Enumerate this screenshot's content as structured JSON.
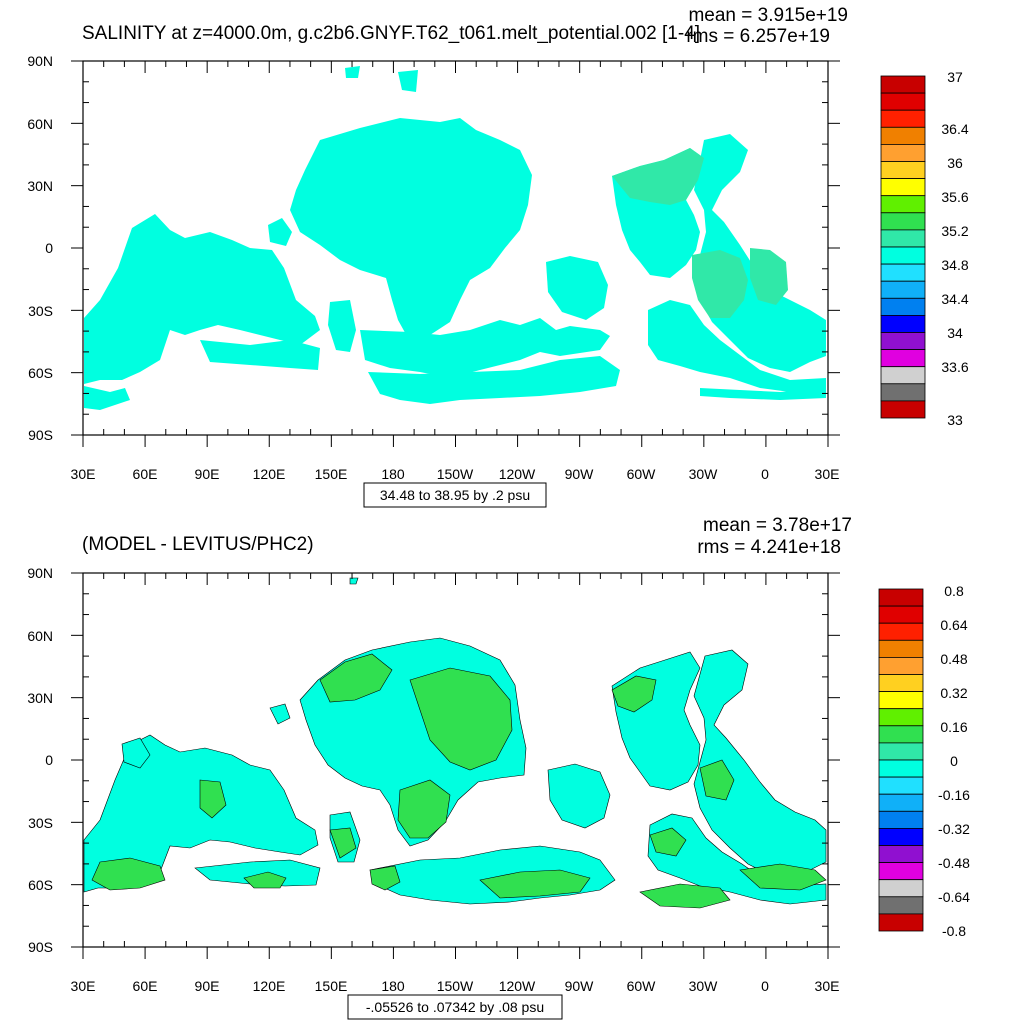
{
  "panels": [
    {
      "title": "SALINITY at z=4000.0m, g.c2b6.GNYF.T62_t061.melt_potential.002 [1-4]",
      "mean": "mean = 3.915e+19",
      "rms": "rms = 6.257e+19",
      "info": "34.48 to 38.95 by .2 psu",
      "colorbar_labels": [
        "37",
        "36.4",
        "36",
        "35.6",
        "35.2",
        "34.8",
        "34.4",
        "34",
        "33.6",
        "33"
      ],
      "colorbar_colors": [
        "#c80000",
        "#e00000",
        "#ff2000",
        "#f08000",
        "#ffa030",
        "#ffd020",
        "#ffff00",
        "#60f000",
        "#30e050",
        "#30e8a8",
        "#00ffe0",
        "#20e0ff",
        "#10b0f8",
        "#0080f0",
        "#0000ff",
        "#9010d0",
        "#e000e0",
        "#d0d0d0",
        "#707070"
      ]
    },
    {
      "title": "(MODEL - LEVITUS/PHC2)",
      "mean": "mean = 3.78e+17",
      "rms": "rms = 4.241e+18",
      "info": "-.05526 to .07342 by .08 psu",
      "colorbar_labels": [
        "0.8",
        "0.64",
        "0.48",
        "0.32",
        "0.16",
        "0",
        "-0.16",
        "-0.32",
        "-0.48",
        "-0.64",
        "-0.8"
      ],
      "colorbar_colors": [
        "#c80000",
        "#e00000",
        "#ff2000",
        "#f08000",
        "#ffa030",
        "#ffd020",
        "#ffff00",
        "#60f000",
        "#30e050",
        "#30e8a8",
        "#00ffe0",
        "#20e0ff",
        "#10b0f8",
        "#0080f0",
        "#0000ff",
        "#9010d0",
        "#e000e0",
        "#d0d0d0",
        "#707070"
      ]
    }
  ],
  "chart_data": [
    {
      "type": "heatmap",
      "title": "SALINITY at z=4000.0m, g.c2b6.GNYF.T62_t061.melt_potential.002 [1-4]",
      "x_ticks": [
        "30E",
        "60E",
        "90E",
        "120E",
        "150E",
        "180",
        "150W",
        "120W",
        "90W",
        "60W",
        "30W",
        "0",
        "30E"
      ],
      "y_ticks": [
        "90N",
        "60N",
        "30N",
        "0",
        "30S",
        "60S",
        "90S"
      ],
      "colorbar_labels": [
        "37",
        "36.4",
        "36",
        "35.6",
        "35.2",
        "34.8",
        "34.4",
        "34",
        "33.6",
        "33"
      ],
      "dominant_value_range": [
        34.8,
        35.0
      ]
    },
    {
      "type": "heatmap",
      "title": "(MODEL - LEVITUS/PHC2)",
      "x_ticks": [
        "30E",
        "60E",
        "90E",
        "120E",
        "150E",
        "180",
        "150W",
        "120W",
        "90W",
        "60W",
        "30W",
        "0",
        "30E"
      ],
      "y_ticks": [
        "90N",
        "60N",
        "30N",
        "0",
        "30S",
        "60S",
        "90S"
      ],
      "colorbar_labels": [
        "0.8",
        "0.64",
        "0.48",
        "0.32",
        "0.16",
        "0",
        "-0.16",
        "-0.32",
        "-0.48",
        "-0.64",
        "-0.8"
      ],
      "dominant_value_range": [
        -0.16,
        0.16
      ]
    }
  ]
}
